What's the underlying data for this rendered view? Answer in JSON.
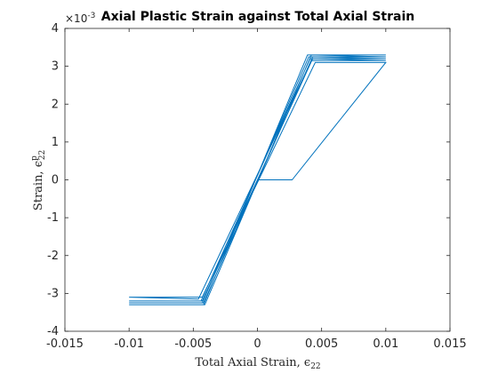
{
  "chart_data": {
    "type": "line",
    "title": "Axial Plastic Strain against Total Axial Strain",
    "xlabel": "Total Axial Strain, ϵ22",
    "ylabel": "Strain, ϵp22",
    "xlabel_main": "Total Axial Strain, ϵ",
    "xlabel_sub": "22",
    "ylabel_main": "Strain, ϵ",
    "ylabel_sub": "22",
    "ylabel_sup": "p",
    "y_exponent_label": "×10",
    "y_exponent_power": "-3",
    "xlim": [
      -0.015,
      0.015
    ],
    "ylim": [
      -4,
      4
    ],
    "xticks": [
      -0.015,
      -0.01,
      -0.005,
      0,
      0.005,
      0.01,
      0.015
    ],
    "xtick_labels": [
      "-0.015",
      "-0.01",
      "-0.005",
      "0",
      "0.005",
      "0.01",
      "0.015"
    ],
    "yticks": [
      -4,
      -3,
      -2,
      -1,
      0,
      1,
      2,
      3,
      4
    ],
    "ytick_labels": [
      "-4",
      "-3",
      "-2",
      "-1",
      "0",
      "1",
      "2",
      "3",
      "4"
    ],
    "grid": false,
    "line_color": "#0072BD",
    "series": [
      {
        "values_note": "y in units of 1e-3",
        "x": [
          0,
          0.0027,
          0.01,
          0.01,
          0.0045,
          -0.0043,
          -0.01,
          -0.01,
          -0.0046,
          0.0042,
          0.01,
          0.01,
          0.0043,
          -0.0043,
          -0.01,
          -0.01,
          -0.0044,
          0.0041,
          0.01,
          0.01,
          0.0043,
          -0.0042,
          -0.01,
          -0.01,
          -0.0043,
          0.004,
          0.01,
          0.01,
          0.0042,
          -0.0041,
          -0.01,
          -0.01,
          -0.0042,
          0.0039,
          0.01,
          0.01
        ],
        "y": [
          0,
          0,
          3.1,
          3.1,
          3.1,
          -3.1,
          -3.1,
          -3.1,
          -3.15,
          3.15,
          3.15,
          3.15,
          3.2,
          -3.2,
          -3.2,
          -3.2,
          -3.2,
          3.2,
          3.2,
          3.2,
          3.25,
          -3.25,
          -3.25,
          -3.25,
          -3.25,
          3.25,
          3.25,
          3.25,
          3.3,
          -3.3,
          -3.3,
          -3.3,
          -3.3,
          3.3,
          3.3,
          3.3
        ]
      }
    ]
  }
}
